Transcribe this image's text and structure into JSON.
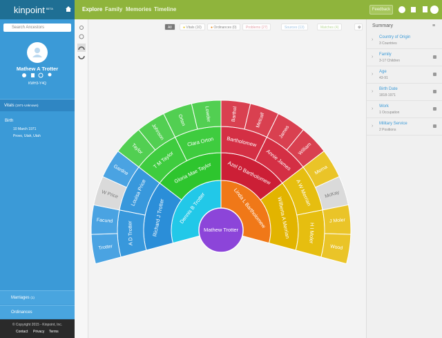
{
  "top_bar": {
    "logo": "kinpoint",
    "badge": "BETA",
    "nav": [
      "Explore",
      "Family",
      "Memories",
      "Timeline"
    ],
    "feedback": "Feedback"
  },
  "sidebar": {
    "search_placeholder": "Search Ancestors",
    "person_name": "Mathew A Trotter",
    "person_id": "KWH3-Y4Q",
    "vitals": "Vitals",
    "vitals_range": "(1971-Unknown)",
    "birth_label": "Birth",
    "birth_date": "10 March 1971",
    "birth_place": "Provo, Utah, Utah",
    "marriages": "Marriages",
    "marriages_count": "(1)",
    "ordinances": "Ordinances",
    "copyright": "© Copyright 2015 - Kinpoint, Inc.",
    "links": [
      "Contact",
      "Privacy",
      "Terms"
    ]
  },
  "filters": [
    "All",
    "Vitals (10)",
    "Ordinances (0)",
    "Problems (27)",
    "Sources (13)",
    "Matches (4)"
  ],
  "fan": {
    "center": "Mathew Trotter",
    "generations": [
      [
        "Dennis B Trotter",
        "Linda L Bartholomew"
      ],
      [
        "Richard J Trotter",
        "Gloria Mae Taylor",
        "Azel D Bartholomew",
        "Wilberta A Merrian"
      ],
      [
        "A D Trotter",
        "Louisa Price",
        "T M Taylor",
        "Clara Orton",
        "Bartholomew",
        "Annie James",
        "A W Merrian",
        "H I Moler"
      ],
      [
        "Trotter",
        "Facund",
        "W Price",
        "Gardne",
        "Taylor",
        "Johnson",
        "Orton",
        "Lowder",
        "Barthol",
        "Metcalf",
        "James",
        "William",
        "Merna",
        "McKay",
        "J Moler",
        "Wood"
      ]
    ]
  },
  "summary": {
    "title": "Summary",
    "items": [
      {
        "label": "Country of Origin",
        "detail": "3 Countries"
      },
      {
        "label": "Family",
        "detail": "3-17 Children"
      },
      {
        "label": "Age",
        "detail": "43-91"
      },
      {
        "label": "Birth Date",
        "detail": "1818-1971"
      },
      {
        "label": "Work",
        "detail": "1 Occupation"
      },
      {
        "label": "Military Service",
        "detail": "2 Positions"
      }
    ]
  }
}
